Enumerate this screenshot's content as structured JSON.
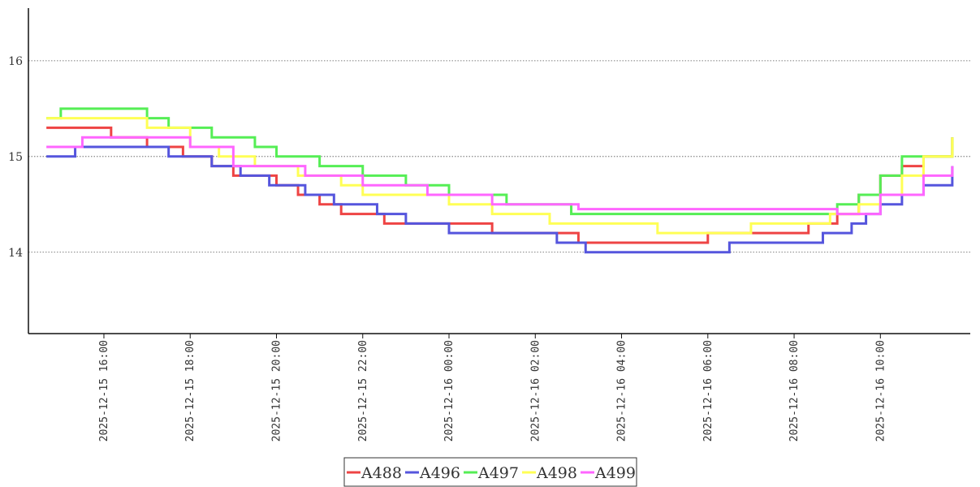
{
  "chart_data": {
    "type": "line",
    "title": "",
    "xlabel": "",
    "ylabel": "",
    "xlim": [
      "2025-12-15 14:15",
      "2025-12-16 12:05"
    ],
    "ylim": [
      13.15,
      16.55
    ],
    "step": true,
    "grid": "horizontal dotted",
    "legend": "bottom-center",
    "y_ticks": [
      "14",
      "15",
      "16"
    ],
    "x_ticks": [
      "2025-12-15 16:00",
      "2025-12-15 18:00",
      "2025-12-15 20:00",
      "2025-12-15 22:00",
      "2025-12-16 00:00",
      "2025-12-16 02:00",
      "2025-12-16 04:00",
      "2025-12-16 06:00",
      "2025-12-16 08:00",
      "2025-12-16 10:00"
    ],
    "series": [
      {
        "name": "A488",
        "color": "#ee4444",
        "x": [
          "2025-12-15 14:40",
          "2025-12-15 16:10",
          "2025-12-15 17:00",
          "2025-12-15 17:50",
          "2025-12-15 18:30",
          "2025-12-15 19:00",
          "2025-12-15 20:00",
          "2025-12-15 20:30",
          "2025-12-15 21:00",
          "2025-12-15 21:30",
          "2025-12-15 22:30",
          "2025-12-15 23:30",
          "2025-12-16 01:00",
          "2025-12-16 02:00",
          "2025-12-16 03:00",
          "2025-12-16 04:00",
          "2025-12-16 06:00",
          "2025-12-16 08:20",
          "2025-12-16 09:00",
          "2025-12-16 09:30",
          "2025-12-16 10:00",
          "2025-12-16 10:30",
          "2025-12-16 11:00",
          "2025-12-16 11:40"
        ],
        "y": [
          15.3,
          15.2,
          15.1,
          15.0,
          14.9,
          14.8,
          14.7,
          14.6,
          14.5,
          14.4,
          14.3,
          14.3,
          14.2,
          14.2,
          14.1,
          14.1,
          14.2,
          14.3,
          14.4,
          14.6,
          14.8,
          14.9,
          15.0,
          15.2
        ]
      },
      {
        "name": "A496",
        "color": "#5555dd",
        "x": [
          "2025-12-15 14:40",
          "2025-12-15 15:20",
          "2025-12-15 16:00",
          "2025-12-15 17:30",
          "2025-12-15 18:30",
          "2025-12-15 19:10",
          "2025-12-15 19:50",
          "2025-12-15 20:40",
          "2025-12-15 21:20",
          "2025-12-15 22:20",
          "2025-12-15 23:00",
          "2025-12-16 00:00",
          "2025-12-16 01:30",
          "2025-12-16 02:30",
          "2025-12-16 03:10",
          "2025-12-16 04:30",
          "2025-12-16 06:30",
          "2025-12-16 08:40",
          "2025-12-16 09:20",
          "2025-12-16 09:40",
          "2025-12-16 10:00",
          "2025-12-16 10:30",
          "2025-12-16 11:00",
          "2025-12-16 11:40"
        ],
        "y": [
          15.0,
          15.1,
          15.1,
          15.0,
          14.9,
          14.8,
          14.7,
          14.6,
          14.5,
          14.4,
          14.3,
          14.2,
          14.2,
          14.1,
          14.0,
          14.0,
          14.1,
          14.2,
          14.3,
          14.4,
          14.5,
          14.6,
          14.7,
          14.9
        ]
      },
      {
        "name": "A497",
        "color": "#55ee55",
        "x": [
          "2025-12-15 14:40",
          "2025-12-15 15:00",
          "2025-12-15 16:00",
          "2025-12-15 17:00",
          "2025-12-15 17:30",
          "2025-12-15 18:30",
          "2025-12-15 19:30",
          "2025-12-15 20:00",
          "2025-12-15 21:00",
          "2025-12-15 22:00",
          "2025-12-15 23:00",
          "2025-12-16 00:00",
          "2025-12-16 01:20",
          "2025-12-16 02:50",
          "2025-12-16 05:00",
          "2025-12-16 07:00",
          "2025-12-16 09:00",
          "2025-12-16 09:30",
          "2025-12-16 10:00",
          "2025-12-16 10:30",
          "2025-12-16 11:00",
          "2025-12-16 11:40"
        ],
        "y": [
          15.4,
          15.5,
          15.5,
          15.4,
          15.3,
          15.2,
          15.1,
          15.0,
          14.9,
          14.8,
          14.7,
          14.6,
          14.5,
          14.4,
          14.4,
          14.4,
          14.5,
          14.6,
          14.8,
          15.0,
          15.0,
          15.2
        ]
      },
      {
        "name": "A498",
        "color": "#ffff55",
        "x": [
          "2025-12-15 14:40",
          "2025-12-15 15:20",
          "2025-12-15 17:00",
          "2025-12-15 18:00",
          "2025-12-15 18:40",
          "2025-12-15 19:30",
          "2025-12-15 20:30",
          "2025-12-15 21:30",
          "2025-12-15 22:00",
          "2025-12-15 23:00",
          "2025-12-16 00:00",
          "2025-12-16 01:00",
          "2025-12-16 02:20",
          "2025-12-16 03:00",
          "2025-12-16 04:50",
          "2025-12-16 06:00",
          "2025-12-16 07:00",
          "2025-12-16 08:50",
          "2025-12-16 09:30",
          "2025-12-16 10:00",
          "2025-12-16 10:30",
          "2025-12-16 11:00",
          "2025-12-16 11:40"
        ],
        "y": [
          15.4,
          15.4,
          15.3,
          15.1,
          15.0,
          14.9,
          14.8,
          14.7,
          14.6,
          14.6,
          14.5,
          14.4,
          14.3,
          14.3,
          14.2,
          14.2,
          14.3,
          14.4,
          14.5,
          14.6,
          14.8,
          15.0,
          15.2
        ]
      },
      {
        "name": "A499",
        "color": "#ff66ff",
        "x": [
          "2025-12-15 14:40",
          "2025-12-15 15:30",
          "2025-12-15 17:00",
          "2025-12-15 18:00",
          "2025-12-15 19:00",
          "2025-12-15 20:00",
          "2025-12-15 20:40",
          "2025-12-15 22:00",
          "2025-12-15 23:30",
          "2025-12-16 00:00",
          "2025-12-16 01:00",
          "2025-12-16 03:00",
          "2025-12-16 09:00",
          "2025-12-16 10:00",
          "2025-12-16 11:00",
          "2025-12-16 11:40"
        ],
        "y": [
          15.1,
          15.2,
          15.2,
          15.1,
          14.9,
          14.9,
          14.8,
          14.7,
          14.6,
          14.6,
          14.5,
          14.45,
          14.4,
          14.6,
          14.8,
          14.9
        ]
      }
    ]
  }
}
